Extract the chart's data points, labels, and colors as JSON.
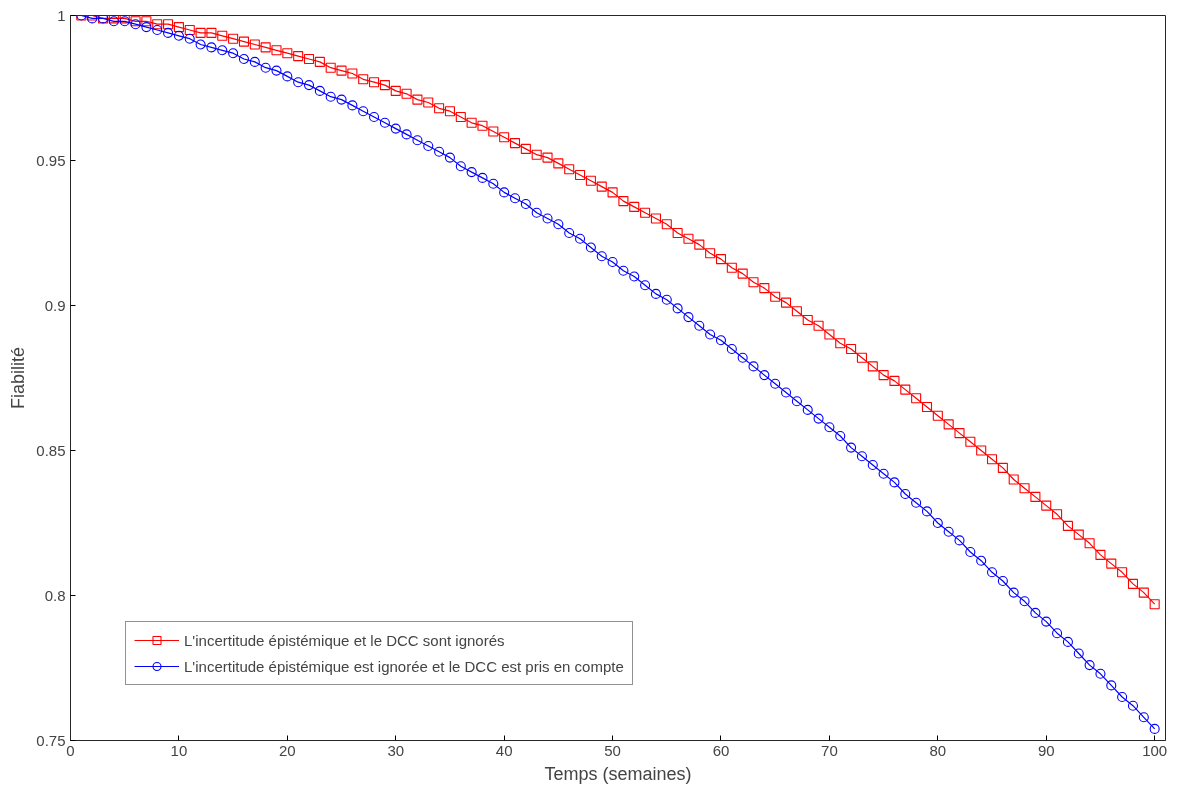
{
  "chart_data": {
    "type": "line",
    "xlabel": "Temps (semaines)",
    "ylabel": "Fiabilité",
    "x": [
      1,
      2,
      3,
      4,
      5,
      6,
      7,
      8,
      9,
      10,
      11,
      12,
      13,
      14,
      15,
      16,
      17,
      18,
      19,
      20,
      21,
      22,
      23,
      24,
      25,
      26,
      27,
      28,
      29,
      30,
      31,
      32,
      33,
      34,
      35,
      36,
      37,
      38,
      39,
      40,
      41,
      42,
      43,
      44,
      45,
      46,
      47,
      48,
      49,
      50,
      51,
      52,
      53,
      54,
      55,
      56,
      57,
      58,
      59,
      60,
      61,
      62,
      63,
      64,
      65,
      66,
      67,
      68,
      69,
      70,
      71,
      72,
      73,
      74,
      75,
      76,
      77,
      78,
      79,
      80,
      81,
      82,
      83,
      84,
      85,
      86,
      87,
      88,
      89,
      90,
      91,
      92,
      93,
      94,
      95,
      96,
      97,
      98,
      99,
      100
    ],
    "series": [
      {
        "name": "L'incertitude épistémique et le DCC sont ignorés",
        "color": "#ff0000",
        "marker": "square",
        "values": [
          1.0,
          1.0,
          0.999,
          0.999,
          0.999,
          0.998,
          0.998,
          0.997,
          0.997,
          0.996,
          0.995,
          0.994,
          0.994,
          0.993,
          0.992,
          0.991,
          0.99,
          0.989,
          0.988,
          0.987,
          0.986,
          0.985,
          0.984,
          0.982,
          0.981,
          0.98,
          0.978,
          0.977,
          0.976,
          0.974,
          0.973,
          0.971,
          0.97,
          0.968,
          0.967,
          0.965,
          0.963,
          0.962,
          0.96,
          0.958,
          0.956,
          0.954,
          0.952,
          0.951,
          0.949,
          0.947,
          0.945,
          0.943,
          0.941,
          0.939,
          0.936,
          0.934,
          0.932,
          0.93,
          0.928,
          0.925,
          0.923,
          0.921,
          0.918,
          0.916,
          0.913,
          0.911,
          0.908,
          0.906,
          0.903,
          0.901,
          0.898,
          0.895,
          0.893,
          0.89,
          0.887,
          0.885,
          0.882,
          0.879,
          0.876,
          0.874,
          0.871,
          0.868,
          0.865,
          0.862,
          0.859,
          0.856,
          0.853,
          0.85,
          0.847,
          0.844,
          0.84,
          0.837,
          0.834,
          0.831,
          0.828,
          0.824,
          0.821,
          0.818,
          0.814,
          0.811,
          0.808,
          0.804,
          0.801,
          0.797
        ]
      },
      {
        "name": "L'incertitude épistémique est ignorée et le DCC est pris en compte",
        "color": "#0000ff",
        "marker": "circle",
        "values": [
          1.0,
          0.999,
          0.999,
          0.998,
          0.998,
          0.997,
          0.996,
          0.995,
          0.994,
          0.993,
          0.992,
          0.99,
          0.989,
          0.988,
          0.987,
          0.985,
          0.984,
          0.982,
          0.981,
          0.979,
          0.977,
          0.976,
          0.974,
          0.972,
          0.971,
          0.969,
          0.967,
          0.965,
          0.963,
          0.961,
          0.959,
          0.957,
          0.955,
          0.953,
          0.951,
          0.948,
          0.946,
          0.944,
          0.942,
          0.939,
          0.937,
          0.935,
          0.932,
          0.93,
          0.928,
          0.925,
          0.923,
          0.92,
          0.917,
          0.915,
          0.912,
          0.91,
          0.907,
          0.904,
          0.902,
          0.899,
          0.896,
          0.893,
          0.89,
          0.888,
          0.885,
          0.882,
          0.879,
          0.876,
          0.873,
          0.87,
          0.867,
          0.864,
          0.861,
          0.858,
          0.855,
          0.851,
          0.848,
          0.845,
          0.842,
          0.839,
          0.835,
          0.832,
          0.829,
          0.825,
          0.822,
          0.819,
          0.815,
          0.812,
          0.808,
          0.805,
          0.801,
          0.798,
          0.794,
          0.791,
          0.787,
          0.784,
          0.78,
          0.776,
          0.773,
          0.769,
          0.765,
          0.762,
          0.758,
          0.754
        ]
      }
    ],
    "xlim": [
      0,
      101
    ],
    "ylim": [
      0.75,
      1
    ],
    "xticks": [
      0,
      10,
      20,
      30,
      40,
      50,
      60,
      70,
      80,
      90,
      100
    ],
    "yticks": [
      0.75,
      0.8,
      0.85,
      0.9,
      0.95,
      1
    ],
    "grid": false,
    "legend": "bottom left",
    "line_style": "solid"
  }
}
